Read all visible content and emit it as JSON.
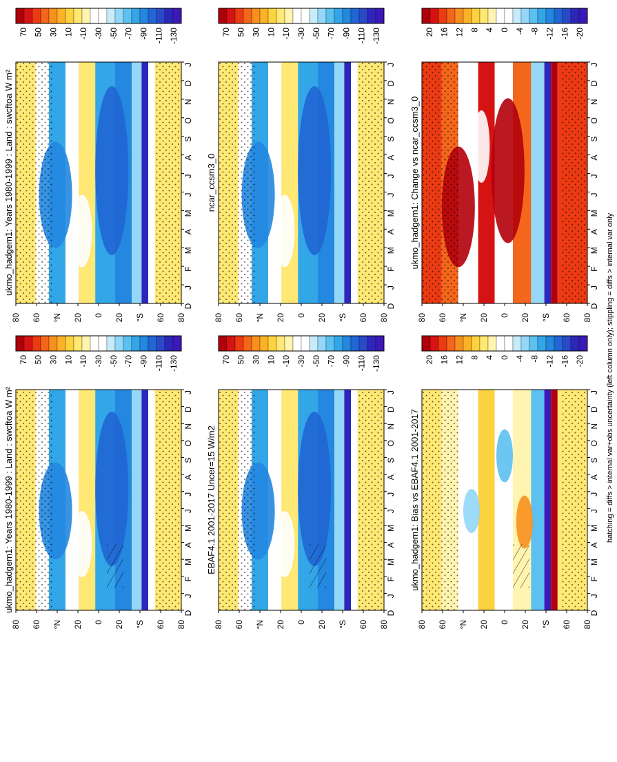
{
  "chart_data": {
    "type": "heatmap",
    "layout": "2 columns x 3 rows, rotated 90 degrees; time axis D..J, latitude axis 80N..80S",
    "months": [
      "D",
      "J",
      "F",
      "M",
      "A",
      "M",
      "J",
      "J",
      "A",
      "S",
      "O",
      "N",
      "D",
      "J"
    ],
    "lat_labels": [
      "80",
      "60",
      "°N",
      "20",
      "0",
      "20",
      "°S",
      "60",
      "80"
    ],
    "panels": [
      {
        "title": "ukmo_hadgem1: Years 1980-1999 : Land : swcftoa W m²",
        "kind": "abs",
        "hatched": true,
        "colorbar": [
          "70",
          "50",
          "30",
          "10",
          "-10",
          "-30",
          "-50",
          "-70",
          "-90",
          "-110",
          "-130"
        ]
      },
      {
        "title": "EBAF4.1 2001-2017 Uncer=15 W/m2",
        "kind": "abs",
        "hatched": true,
        "colorbar": [
          "70",
          "50",
          "30",
          "10",
          "-10",
          "-30",
          "-50",
          "-70",
          "-90",
          "-110",
          "-130"
        ]
      },
      {
        "title": "ukmo_hadgem1: Bias vs EBAF4.1 2001-2017",
        "kind": "bias",
        "hatched": true,
        "colorbar": [
          "20",
          "16",
          "12",
          "8",
          "4",
          "0",
          "-4",
          "-8",
          "-12",
          "-16",
          "-20"
        ]
      },
      {
        "title": "ukmo_hadgem1: Years 1980-1999 : Land : swcftoa W m²",
        "kind": "abs",
        "hatched": false,
        "colorbar": [
          "70",
          "50",
          "30",
          "10",
          "-10",
          "-30",
          "-50",
          "-70",
          "-90",
          "-110",
          "-130"
        ]
      },
      {
        "title": "ncar_ccsm3_0",
        "kind": "abs",
        "hatched": false,
        "colorbar": [
          "70",
          "50",
          "30",
          "10",
          "-10",
          "-30",
          "-50",
          "-70",
          "-90",
          "-110",
          "-130"
        ]
      },
      {
        "title": "ukmo_hadgem1: Change vs ncar_ccsm3_0",
        "kind": "change",
        "hatched": false,
        "colorbar": [
          "20",
          "16",
          "12",
          "8",
          "4",
          "0",
          "-4",
          "-8",
          "-12",
          "-16",
          "-20"
        ]
      }
    ],
    "footnote": "hatching = diffs > internal var+obs uncertainty (left column only); stippling = diffs > internal var only"
  },
  "colors": {
    "scale": [
      "#b2000b",
      "#d61313",
      "#ec3a13",
      "#f4661b",
      "#f8901e",
      "#fbb226",
      "#fdd23f",
      "#ffe874",
      "#fff4b0",
      "#ffffff",
      "#ffffff",
      "#c6ecfb",
      "#94d7f8",
      "#5cc0f1",
      "#33a6e8",
      "#2487e0",
      "#2066d4",
      "#2a49c8",
      "#2c27ba",
      "#3b18b8",
      "#5014c0"
    ],
    "abs": {
      "bg": "#fde28a",
      "stip": "#a0a0a0"
    }
  }
}
